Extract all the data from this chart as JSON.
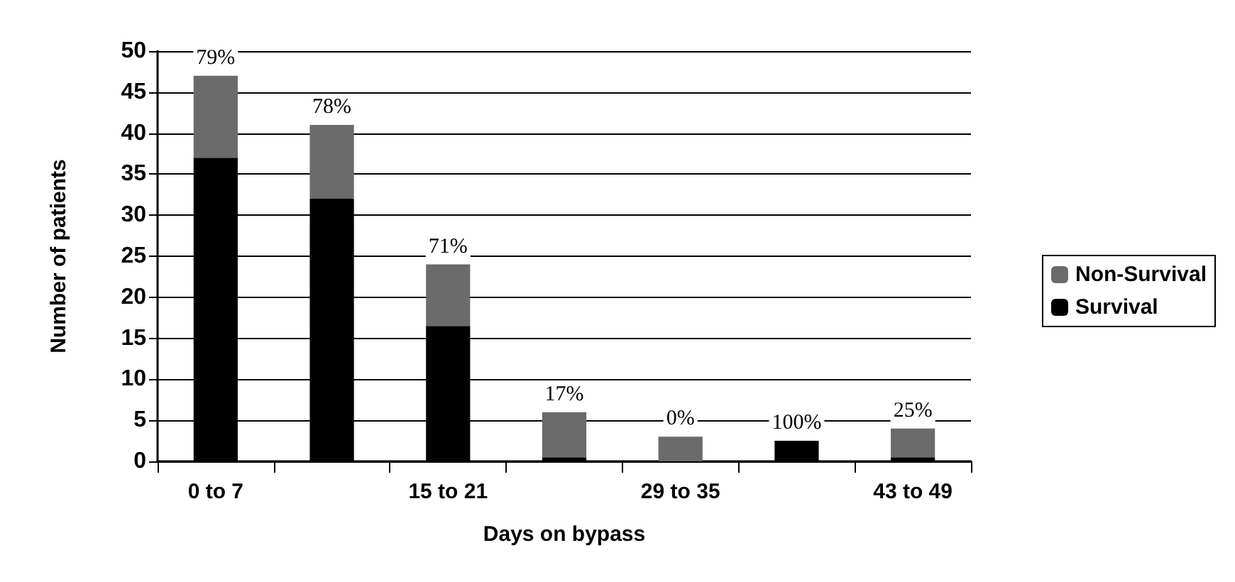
{
  "chart_data": {
    "type": "bar",
    "stacked": true,
    "xlabel": "Days on bypass",
    "ylabel": "Number of patients",
    "categories": [
      "0 to 7",
      null,
      "15 to 21",
      null,
      "29 to 35",
      null,
      "43 to 49"
    ],
    "series": [
      {
        "name": "Survival",
        "color": "#000000",
        "values": [
          37,
          32,
          16.5,
          0.5,
          0,
          2.5,
          0.5
        ]
      },
      {
        "name": "Non-Survival",
        "color": "#6b6b6b",
        "values": [
          10,
          9,
          7.5,
          5.5,
          3,
          0,
          3.5
        ]
      }
    ],
    "annotations": [
      {
        "text": "79%",
        "x": "0 to 7",
        "y": 47
      },
      {
        "text": "78%",
        "y": 41
      },
      {
        "text": "71%",
        "x": "15 to 21",
        "y": 24
      },
      {
        "text": "17%",
        "y": 6
      },
      {
        "text": "0%",
        "x": "29 to 35",
        "y": 3
      },
      {
        "text": "100%",
        "y": 2.5
      },
      {
        "text": "25%",
        "x": "43 to 49",
        "y": 4
      }
    ],
    "ylim": [
      0,
      50
    ],
    "yticks": [
      0,
      5,
      10,
      15,
      20,
      25,
      30,
      35,
      40,
      45,
      50
    ],
    "grid": "y",
    "legend": "right"
  }
}
